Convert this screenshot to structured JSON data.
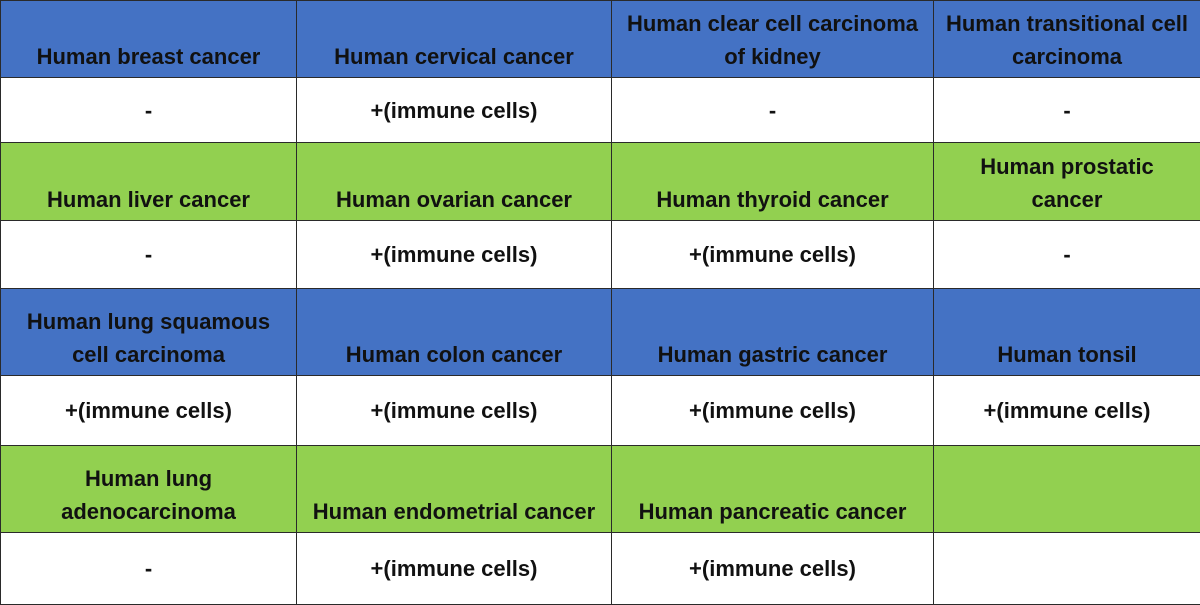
{
  "table": {
    "rows": [
      [
        "Human breast cancer",
        "Human cervical cancer",
        "Human clear cell carcinoma of kidney",
        "Human transitional cell carcinoma"
      ],
      [
        "-",
        "+(immune cells)",
        "-",
        "-"
      ],
      [
        "Human liver cancer",
        "Human ovarian cancer",
        "Human thyroid cancer",
        "Human prostatic cancer"
      ],
      [
        "-",
        "+(immune cells)",
        "+(immune cells)",
        "-"
      ],
      [
        "Human lung squamous cell carcinoma",
        "Human colon cancer",
        "Human gastric cancer",
        "Human tonsil"
      ],
      [
        "+(immune cells)",
        "+(immune cells)",
        "+(immune cells)",
        "+(immune cells)"
      ],
      [
        "Human lung adenocarcinoma",
        "Human endometrial cancer",
        "Human pancreatic cancer"
      ],
      [
        "-",
        "+(immune cells)",
        "+(immune cells)"
      ]
    ]
  }
}
